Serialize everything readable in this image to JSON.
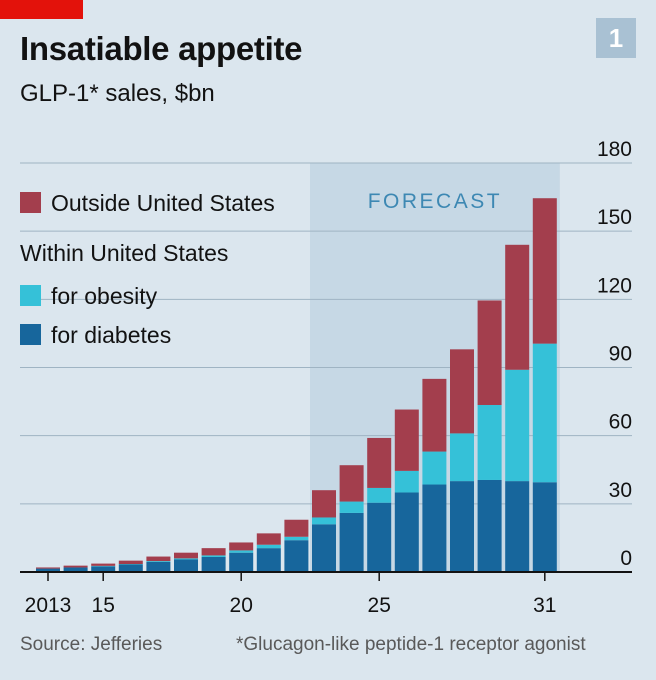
{
  "chart_number": "1",
  "title": "Insatiable appetite",
  "subtitle": "GLP-1* sales, $bn",
  "footer": {
    "source": "Source: Jefferies",
    "note": "*Glucagon-like peptide-1 receptor agonist"
  },
  "colors": {
    "outside_us": "#a33e4d",
    "obesity": "#35c1d8",
    "diabetes": "#17669c",
    "forecast_band": "#c6d8e5",
    "grid": "#9fb4c3",
    "axis": "#121212",
    "brand": "#e3120b"
  },
  "chart_data": {
    "type": "bar",
    "stacked": true,
    "title": "Insatiable appetite",
    "subtitle": "GLP-1* sales, $bn",
    "ylim": [
      0,
      180
    ],
    "y_ticks": [
      0,
      30,
      60,
      90,
      120,
      150,
      180
    ],
    "y_axis_side": "right",
    "x_tick_labels": [
      {
        "year": 2013,
        "label": "2013"
      },
      {
        "year": 2015,
        "label": "15"
      },
      {
        "year": 2020,
        "label": "20"
      },
      {
        "year": 2025,
        "label": "25"
      },
      {
        "year": 2031,
        "label": "31"
      }
    ],
    "forecast": {
      "label": "FORECAST",
      "from_year": 2023,
      "to_year": 2031
    },
    "legend": {
      "outside_us": "Outside United States",
      "within_us_header": "Within United States",
      "obesity": "for obesity",
      "diabetes": "for diabetes"
    },
    "categories": [
      2013,
      2014,
      2015,
      2016,
      2017,
      2018,
      2019,
      2020,
      2021,
      2022,
      2023,
      2024,
      2025,
      2026,
      2027,
      2028,
      2029,
      2030,
      2031
    ],
    "series": [
      {
        "key": "diabetes",
        "name": "for diabetes",
        "values": [
          1.5,
          2.0,
          2.5,
          3.3,
          4.4,
          5.5,
          6.6,
          8.5,
          10.5,
          14,
          21,
          26,
          30.5,
          35,
          38.5,
          40,
          40.5,
          40,
          39.5
        ]
      },
      {
        "key": "obesity",
        "name": "for obesity",
        "values": [
          0,
          0,
          0.2,
          0.2,
          0.4,
          0.5,
          0.7,
          1.0,
          1.5,
          1.5,
          3.0,
          5.0,
          6.5,
          9.5,
          14.5,
          21,
          33,
          49,
          61
        ]
      },
      {
        "key": "outside_us",
        "name": "Outside United States",
        "values": [
          0.5,
          0.8,
          1.0,
          1.5,
          2.0,
          2.5,
          3.2,
          3.5,
          5.0,
          7.5,
          12,
          16,
          22,
          27,
          32,
          37,
          46,
          55,
          64
        ]
      }
    ]
  }
}
